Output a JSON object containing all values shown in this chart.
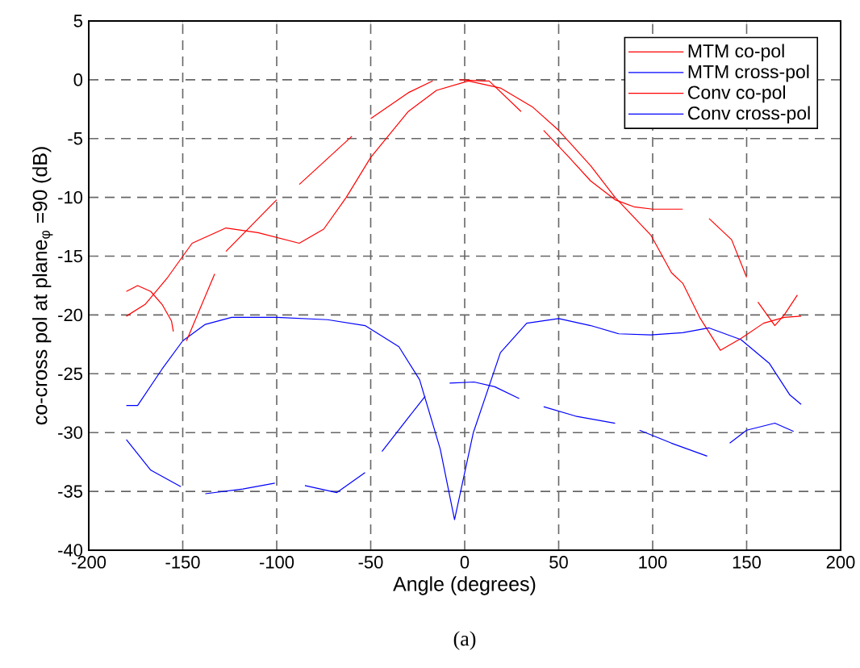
{
  "chart_data": {
    "type": "line",
    "xlabel": "Angle   (degrees)",
    "ylabel": "co-cross pol at plane$_{φ}$ =90 (dB)",
    "annotations": [
      "(a)"
    ],
    "xlim": [
      -200,
      200
    ],
    "ylim": [
      -40,
      5
    ],
    "xticks": [
      -200,
      -150,
      -100,
      -50,
      0,
      50,
      100,
      150,
      200
    ],
    "yticks": [
      -40,
      -35,
      -30,
      -25,
      -20,
      -15,
      -10,
      -5,
      0,
      5
    ],
    "grid": true,
    "legend": "top right",
    "series": [
      {
        "name": "MTM co-pol",
        "color": "#ff0000",
        "x": [
          -180,
          -170,
          -158,
          -145,
          -127,
          -110,
          -88,
          -75,
          -63,
          -50,
          -30,
          -15,
          2,
          19,
          36,
          50,
          67,
          80,
          99,
          110,
          116,
          125,
          136,
          147,
          159,
          170,
          179
        ],
        "values": [
          -20.1,
          -19.1,
          -16.8,
          -13.9,
          -12.6,
          -13,
          -13.9,
          -12.7,
          -10,
          -6.6,
          -2.7,
          -0.9,
          -0.1,
          -0.7,
          -2.3,
          -4.3,
          -7.3,
          -10,
          -13.2,
          -16.4,
          -17.3,
          -20.2,
          -23,
          -22,
          -20.7,
          -20.2,
          -20.1
        ]
      },
      {
        "name": "MTM cross-pol",
        "color": "#0000ff",
        "x": [
          -180,
          -174,
          -161,
          -150,
          -138,
          -124,
          -100,
          -73,
          -53,
          -35,
          -24,
          -13,
          -5.4,
          4.6,
          19,
          33,
          50,
          67,
          82,
          99,
          116,
          130,
          147,
          162,
          173,
          179
        ],
        "values": [
          -27.7,
          -27.7,
          -24.6,
          -22.2,
          -20.8,
          -20.2,
          -20.2,
          -20.4,
          -20.9,
          -22.7,
          -25.5,
          -31.4,
          -37.4,
          -30,
          -23.2,
          -20.7,
          -20.3,
          -20.9,
          -21.6,
          -21.7,
          -21.5,
          -21.1,
          -22.1,
          -24.1,
          -26.8,
          -27.6
        ]
      },
      {
        "name": "Conv co-pol",
        "color": "#ff0000",
        "x": [
          -180,
          -174,
          -167,
          -161,
          -156,
          -155,
          -152,
          -148,
          -133,
          -130,
          -127,
          -100,
          -94,
          -88,
          -60,
          -55,
          -50,
          -30,
          -17,
          -10,
          -3,
          10,
          13,
          30,
          36,
          42,
          55,
          67,
          80,
          90,
          100,
          116,
          123,
          130,
          142,
          150,
          153,
          156,
          165,
          170,
          177
        ],
        "values": [
          -18,
          -17.5,
          -18,
          -19.1,
          -20.5,
          -21.4,
          null,
          -22.2,
          -16.5,
          null,
          -14.6,
          -10.2,
          null,
          -8.9,
          -4.8,
          null,
          -3.3,
          -1.1,
          -0.1,
          null,
          0,
          -0.1,
          -0.1,
          -2.7,
          null,
          -4.3,
          -6.5,
          -8.6,
          -10.2,
          -10.8,
          -11,
          -11,
          null,
          -11.8,
          -13.6,
          -16.8,
          null,
          -18.9,
          -20.9,
          -20,
          -18.3
        ]
      },
      {
        "name": "Conv cross-pol",
        "color": "#0000ff",
        "x": [
          -180,
          -167,
          -151,
          -145,
          -138,
          -118,
          -101,
          -93,
          -85,
          -68,
          -53,
          -48,
          -44,
          -21,
          -15,
          -8,
          5,
          16,
          29,
          35,
          42,
          59,
          80,
          87,
          93,
          110,
          129,
          135,
          141,
          150,
          165,
          175
        ],
        "values": [
          -30.6,
          -33.2,
          -34.6,
          null,
          -35.2,
          -34.8,
          -34.3,
          null,
          -34.5,
          -35.1,
          -33.4,
          null,
          -31.6,
          -26.9,
          null,
          -25.8,
          -25.7,
          -26.1,
          -27.1,
          null,
          -27.8,
          -28.6,
          -29.2,
          null,
          -29.8,
          -30.9,
          -32,
          null,
          -30.9,
          -29.8,
          -29.2,
          -29.9
        ]
      }
    ]
  }
}
